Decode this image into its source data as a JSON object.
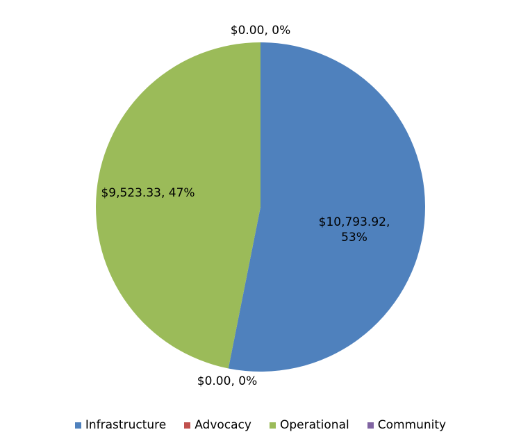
{
  "chart_data": {
    "type": "pie",
    "categories": [
      "Infrastructure",
      "Advocacy",
      "Operational",
      "Community"
    ],
    "values": [
      10793.92,
      0,
      9523.33,
      0
    ],
    "value_labels": [
      "$10,793.92, 53%",
      "$0.00, 0%",
      "$9,523.33, 47%",
      "$0.00, 0%"
    ],
    "colors": [
      "#4f81bd",
      "#c0504d",
      "#9bbb59",
      "#8064a2"
    ],
    "legend": "bottom"
  }
}
